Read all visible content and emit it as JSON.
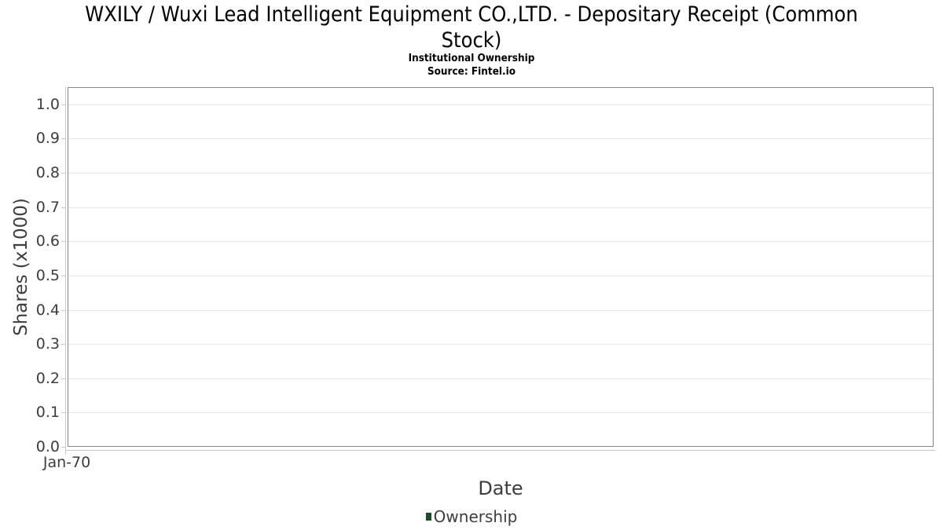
{
  "header": {
    "title_line1": "WXILY / Wuxi Lead Intelligent Equipment CO.,LTD. - Depositary Receipt (Common",
    "title_line2": "Stock)"
  },
  "chart_data": {
    "type": "line",
    "title": "WXILY / Wuxi Lead Intelligent Equipment CO.,LTD. - Depositary Receipt (Common Stock)",
    "subtitle": "Institutional Ownership",
    "source": "Source: Fintel.io",
    "xlabel": "Date",
    "ylabel": "Shares (x1000)",
    "x_ticks": [
      "Jan-70"
    ],
    "y_ticks": [
      "0.0",
      "0.1",
      "0.2",
      "0.3",
      "0.4",
      "0.5",
      "0.6",
      "0.7",
      "0.8",
      "0.9",
      "1.0"
    ],
    "ylim": [
      0,
      1.05
    ],
    "grid": true,
    "legend_position": "bottom",
    "series": [
      {
        "name": "Ownership",
        "color": "#1d4a29",
        "x": [],
        "values": []
      }
    ]
  },
  "colors": {
    "grid": "#e7e7e7",
    "plot_border": "#858585",
    "axis_tick": "#c9c9c9",
    "axis_text": "#3d3d3d",
    "title_text": "#000000",
    "legend_marker": "#1d4a29"
  }
}
